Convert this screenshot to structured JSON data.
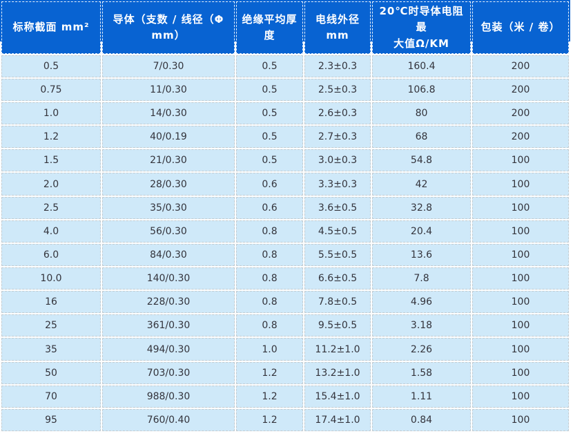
{
  "table": {
    "headers": [
      "标称截面 mm²",
      "导体（支数 / 线径（Φ\nmm）",
      "绝缘平均厚度",
      "电线外径\nmm",
      "20℃时导体电阻最\n大值Ω/KM",
      "包装（米 / 卷）"
    ],
    "rows": [
      [
        "0.5",
        "7/0.30",
        "0.5",
        "2.3±0.3",
        "160.4",
        "200"
      ],
      [
        "0.75",
        "11/0.30",
        "0.5",
        "2.5±0.3",
        "106.8",
        "200"
      ],
      [
        "1.0",
        "14/0.30",
        "0.5",
        "2.6±0.3",
        "80",
        "200"
      ],
      [
        "1.2",
        "40/0.19",
        "0.5",
        "2.7±0.3",
        "68",
        "200"
      ],
      [
        "1.5",
        "21/0.30",
        "0.5",
        "3.0±0.3",
        "54.8",
        "100"
      ],
      [
        "2.0",
        "28/0.30",
        "0.6",
        "3.3±0.3",
        "42",
        "100"
      ],
      [
        "2.5",
        "35/0.30",
        "0.6",
        "3.6±0.5",
        "32.8",
        "100"
      ],
      [
        "4.0",
        "56/0.30",
        "0.8",
        "4.5±0.5",
        "20.4",
        "100"
      ],
      [
        "6.0",
        "84/0.30",
        "0.8",
        "5.5±0.5",
        "13.6",
        "100"
      ],
      [
        "10.0",
        "140/0.30",
        "0.8",
        "6.6±0.5",
        "7.8",
        "100"
      ],
      [
        "16",
        "228/0.30",
        "0.8",
        "7.8±0.5",
        "4.96",
        "100"
      ],
      [
        "25",
        "361/0.30",
        "0.8",
        "9.5±0.5",
        "3.18",
        "100"
      ],
      [
        "35",
        "494/0.30",
        "1.0",
        "11.2±1.0",
        "2.26",
        "100"
      ],
      [
        "50",
        "703/0.30",
        "1.2",
        "13.2±1.0",
        "1.58",
        "100"
      ],
      [
        "70",
        "988/0.30",
        "1.2",
        "15.4±1.0",
        "1.11",
        "100"
      ],
      [
        "95",
        "760/0.40",
        "1.2",
        "17.4±1.0",
        "0.84",
        "100"
      ]
    ],
    "colors": {
      "header_bg": "#0863d2",
      "header_text": "#ffffff",
      "header_border": "#e8f1fb",
      "row_bg": "#cfe9f9",
      "cell_text": "#33333b",
      "cell_border": "#c2ccd2",
      "gap_bg": "#fdfdfd",
      "page_bg": "#ffffff"
    }
  }
}
